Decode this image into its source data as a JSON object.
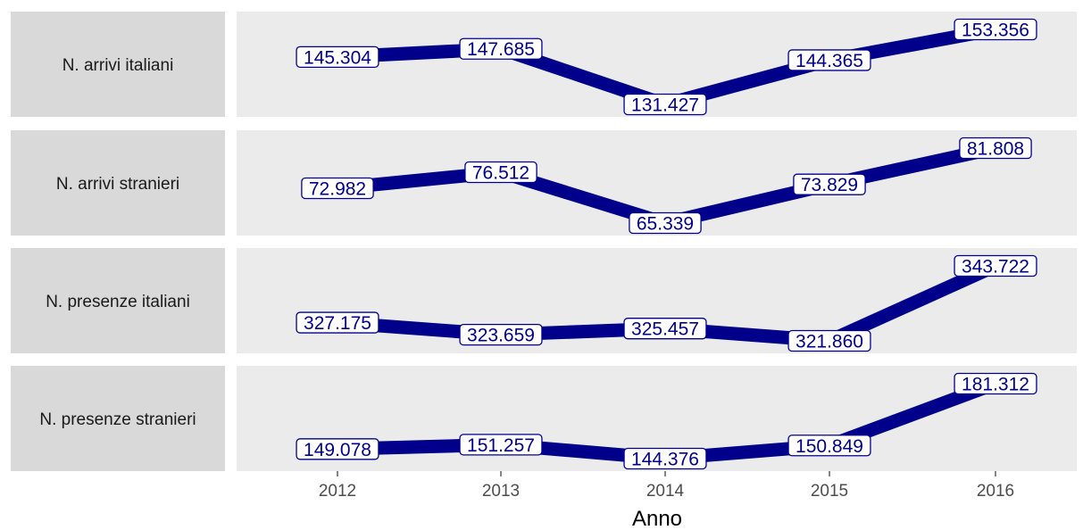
{
  "chart_data": {
    "type": "line",
    "xlabel": "Anno",
    "ylabel": "",
    "categories": [
      "2012",
      "2013",
      "2014",
      "2015",
      "2016"
    ],
    "grid": false,
    "line_color": "#00008B",
    "panel_background": "#EBEBEB",
    "strip_background": "#D9D9D9",
    "panels": [
      {
        "label": "N. arrivi italiani",
        "values": [
          145304,
          147685,
          131427,
          144365,
          153356
        ],
        "value_labels": [
          "145.304",
          "147.685",
          "131.427",
          "144.365",
          "153.356"
        ]
      },
      {
        "label": "N. arrivi stranieri",
        "values": [
          72982,
          76512,
          65339,
          73829,
          81808
        ],
        "value_labels": [
          "72.982",
          "76.512",
          "65.339",
          "73.829",
          "81.808"
        ]
      },
      {
        "label": "N. presenze italiani",
        "values": [
          327175,
          323659,
          325457,
          321860,
          343722
        ],
        "value_labels": [
          "327.175",
          "323.659",
          "325.457",
          "321.860",
          "343.722"
        ]
      },
      {
        "label": "N. presenze stranieri",
        "values": [
          149078,
          151257,
          144376,
          150849,
          181312
        ],
        "value_labels": [
          "149.078",
          "151.257",
          "144.376",
          "150.849",
          "181.312"
        ]
      }
    ]
  }
}
